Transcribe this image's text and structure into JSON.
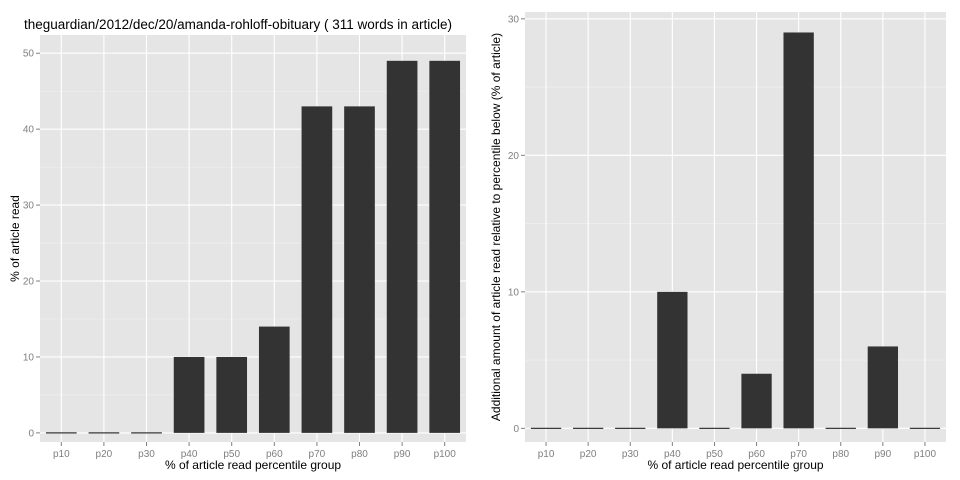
{
  "chart_data": [
    {
      "type": "bar",
      "title": "theguardian/2012/dec/20/amanda-rohloff-obituary ( 311 words in article)",
      "xlabel": "% of article read percentile group",
      "ylabel": "% of article read",
      "categories": [
        "p10",
        "p20",
        "p30",
        "p40",
        "p50",
        "p60",
        "p70",
        "p80",
        "p90",
        "p100"
      ],
      "values": [
        0,
        0,
        0,
        10,
        10,
        14,
        43,
        43,
        49,
        49
      ],
      "ylim": [
        -1.2,
        52.4
      ],
      "yticks": [
        0,
        10,
        20,
        30,
        40,
        50
      ],
      "grid": true,
      "bar_color": "#333333",
      "panel_color": "#e5e5e5"
    },
    {
      "type": "bar",
      "title": "",
      "xlabel": "% of article read percentile group",
      "ylabel": "Additional amount of article read relative to percentile below (% of article)",
      "categories": [
        "p10",
        "p20",
        "p30",
        "p40",
        "p50",
        "p60",
        "p70",
        "p80",
        "p90",
        "p100"
      ],
      "values": [
        0,
        0,
        0,
        10,
        0,
        4,
        29,
        0,
        6,
        0
      ],
      "ylim": [
        -1.0,
        30.5
      ],
      "yticks": [
        0,
        10,
        20,
        30
      ],
      "grid": true,
      "bar_color": "#333333",
      "panel_color": "#e5e5e5"
    }
  ]
}
